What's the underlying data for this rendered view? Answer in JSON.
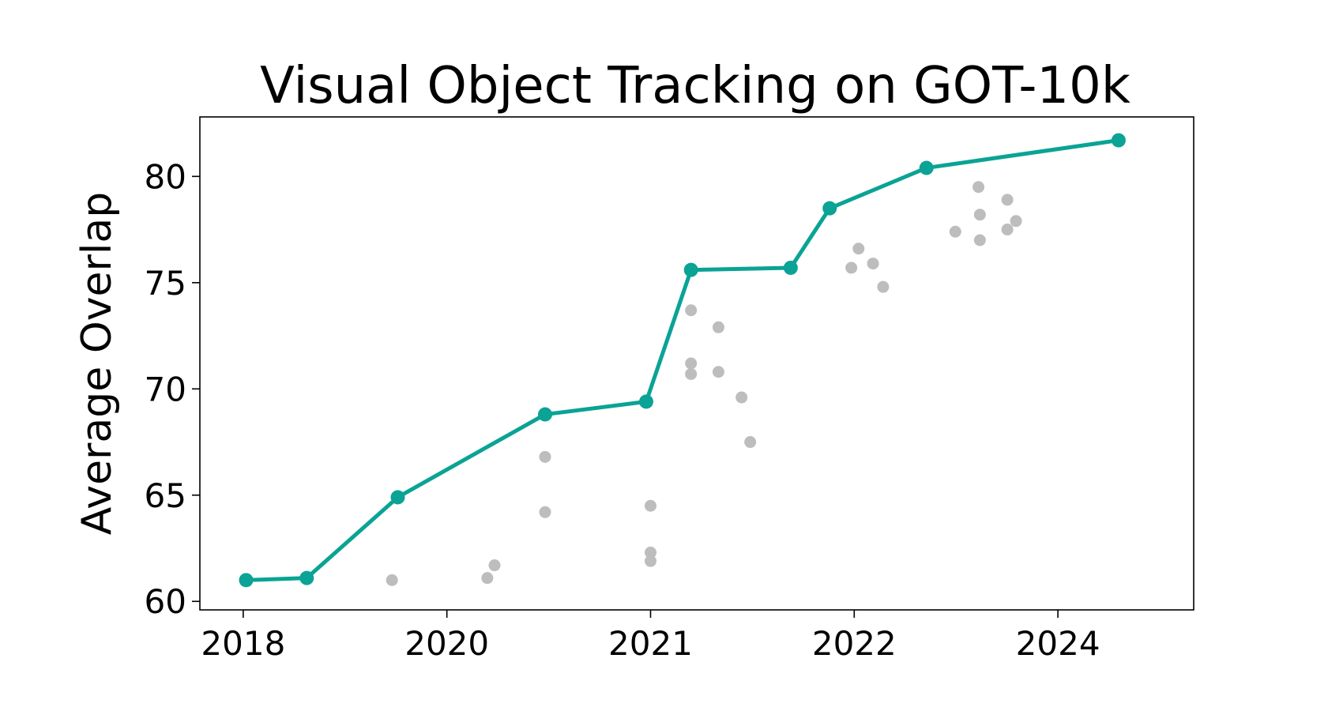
{
  "chart_data": {
    "type": "scatter",
    "title": "Visual Object Tracking on GOT-10k",
    "xlabel": "",
    "ylabel": "Average Overlap",
    "xlim": [
      2017.79,
      2024.67
    ],
    "ylim": [
      59.6,
      82.8
    ],
    "x_ticks": [
      {
        "value": 2018.09,
        "label": "2018"
      },
      {
        "value": 2019.5,
        "label": "2020"
      },
      {
        "value": 2020.91,
        "label": "2021"
      },
      {
        "value": 2022.32,
        "label": "2022"
      },
      {
        "value": 2023.73,
        "label": "2024"
      }
    ],
    "y_ticks": [
      60,
      65,
      70,
      75,
      80
    ],
    "grid": false,
    "legend": "none",
    "colors": {
      "frontier": "#0aa395",
      "other": "#bdbdbd",
      "axis": "#000000"
    },
    "series": [
      {
        "kind": "line-markers",
        "color": "#0aa395",
        "points": [
          {
            "x": 2018.11,
            "y": 61.0
          },
          {
            "x": 2018.53,
            "y": 61.1
          },
          {
            "x": 2019.16,
            "y": 64.9
          },
          {
            "x": 2020.18,
            "y": 68.8
          },
          {
            "x": 2020.88,
            "y": 69.4
          },
          {
            "x": 2021.19,
            "y": 75.6
          },
          {
            "x": 2021.88,
            "y": 75.7
          },
          {
            "x": 2022.15,
            "y": 78.5
          },
          {
            "x": 2022.82,
            "y": 80.4
          },
          {
            "x": 2024.15,
            "y": 81.7
          }
        ]
      },
      {
        "kind": "scatter",
        "color": "#bdbdbd",
        "points": [
          {
            "x": 2019.12,
            "y": 61.0
          },
          {
            "x": 2019.78,
            "y": 61.1
          },
          {
            "x": 2019.83,
            "y": 61.7
          },
          {
            "x": 2020.18,
            "y": 66.8
          },
          {
            "x": 2020.18,
            "y": 64.2
          },
          {
            "x": 2020.91,
            "y": 64.5
          },
          {
            "x": 2020.91,
            "y": 62.3
          },
          {
            "x": 2020.91,
            "y": 61.9
          },
          {
            "x": 2021.19,
            "y": 73.7
          },
          {
            "x": 2021.19,
            "y": 71.2
          },
          {
            "x": 2021.19,
            "y": 70.7
          },
          {
            "x": 2021.38,
            "y": 72.9
          },
          {
            "x": 2021.38,
            "y": 70.8
          },
          {
            "x": 2021.54,
            "y": 69.6
          },
          {
            "x": 2021.6,
            "y": 67.5
          },
          {
            "x": 2022.3,
            "y": 75.7
          },
          {
            "x": 2022.35,
            "y": 76.6
          },
          {
            "x": 2022.45,
            "y": 75.9
          },
          {
            "x": 2022.52,
            "y": 74.8
          },
          {
            "x": 2023.02,
            "y": 77.4
          },
          {
            "x": 2023.18,
            "y": 79.5
          },
          {
            "x": 2023.19,
            "y": 78.2
          },
          {
            "x": 2023.19,
            "y": 77.0
          },
          {
            "x": 2023.38,
            "y": 78.9
          },
          {
            "x": 2023.38,
            "y": 77.5
          },
          {
            "x": 2023.44,
            "y": 77.9
          }
        ]
      }
    ]
  }
}
